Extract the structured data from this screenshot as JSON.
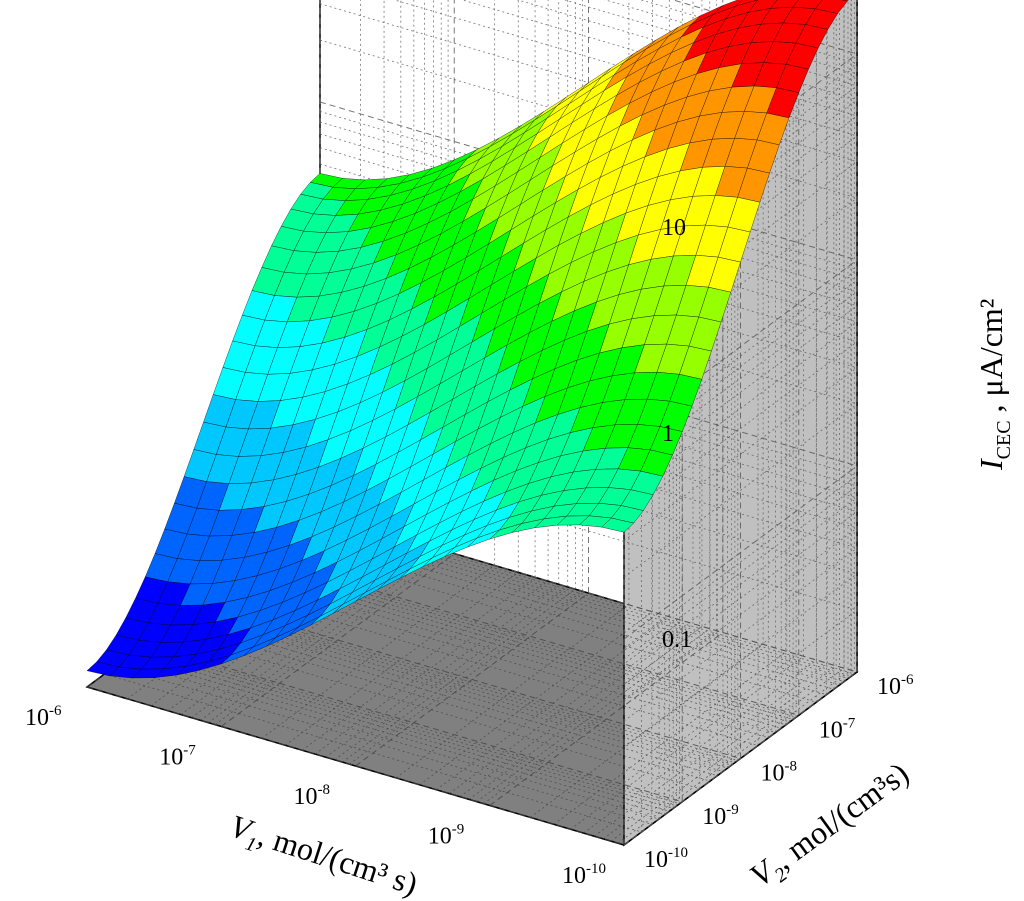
{
  "chart_data": {
    "type": "surface3d",
    "title": "",
    "x_axis": {
      "label_symbol": "V",
      "label_subscript": "1",
      "label_units": ",  mol/(cm³ s)",
      "scale": "log",
      "range": [
        1e-10,
        1e-06
      ],
      "ticks": [
        "10^-6",
        "10^-7",
        "10^-8",
        "10^-9",
        "10^-10"
      ]
    },
    "y_axis": {
      "label_symbol": "V",
      "label_subscript": "2",
      "label_units": ", mol/(cm³s)",
      "scale": "log",
      "range": [
        1e-10,
        1e-06
      ],
      "ticks": [
        "10^-6",
        "10^-7",
        "10^-8",
        "10^-9",
        "10^-10"
      ]
    },
    "z_axis": {
      "label_symbol": "I",
      "label_subscript": "CEC",
      "label_units": " , μA/cm²",
      "scale": "log",
      "range": [
        0.01,
        20
      ],
      "ticks": [
        "10",
        "1",
        "0.1"
      ]
    },
    "surface_corners": [
      {
        "V1": 1e-06,
        "V2": 1e-06,
        "I": 0.45
      },
      {
        "V1": 1e-10,
        "V2": 1e-06,
        "I": 20
      },
      {
        "V1": 1e-10,
        "V2": 1e-10,
        "I": 0.33
      },
      {
        "V1": 1e-06,
        "V2": 1e-10,
        "I": 0.012
      }
    ],
    "color_bands": [
      "#0000ff",
      "#0064ff",
      "#00c8ff",
      "#00ffff",
      "#00ff96",
      "#00ff00",
      "#96ff00",
      "#ffff00",
      "#ff9600",
      "#ff0000"
    ],
    "colors": {
      "floor": "#808080",
      "right_wall": "#c0c0c0",
      "left_wall": "#ffffff",
      "mesh": "#000000"
    }
  }
}
